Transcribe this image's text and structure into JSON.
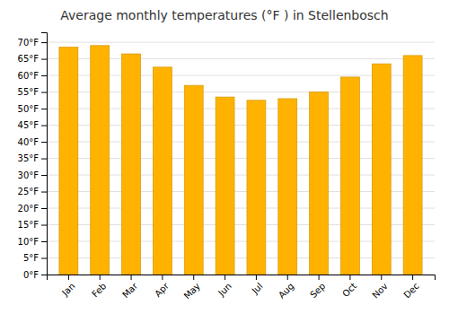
{
  "chart_data": {
    "type": "bar",
    "title": "Average monthly temperatures (°F ) in Stellenbosch",
    "categories": [
      "Jan",
      "Feb",
      "Mar",
      "Apr",
      "May",
      "Jun",
      "Jul",
      "Aug",
      "Sep",
      "Oct",
      "Nov",
      "Dec"
    ],
    "values": [
      68.5,
      69.0,
      66.5,
      62.5,
      57.0,
      53.5,
      52.5,
      53.0,
      55.0,
      59.5,
      63.5,
      66.0
    ],
    "color": "#FFB300",
    "ylim": [
      0,
      73
    ],
    "yticks": [
      {
        "value": 0,
        "label": "0°F"
      },
      {
        "value": 5,
        "label": "5°F"
      },
      {
        "value": 10,
        "label": "10°F"
      },
      {
        "value": 15,
        "label": "15°F"
      },
      {
        "value": 20,
        "label": "20°F"
      },
      {
        "value": 25,
        "label": "25°F"
      },
      {
        "value": 30,
        "label": "30°F"
      },
      {
        "value": 35,
        "label": "35°F"
      },
      {
        "value": 40,
        "label": "40°F"
      },
      {
        "value": 45,
        "label": "45°F"
      },
      {
        "value": 50,
        "label": "50°F"
      },
      {
        "value": 55,
        "label": "55°F"
      },
      {
        "value": 60,
        "label": "60°F"
      },
      {
        "value": 65,
        "label": "65°F"
      },
      {
        "value": 70,
        "label": "70°F"
      }
    ],
    "grid": true
  }
}
